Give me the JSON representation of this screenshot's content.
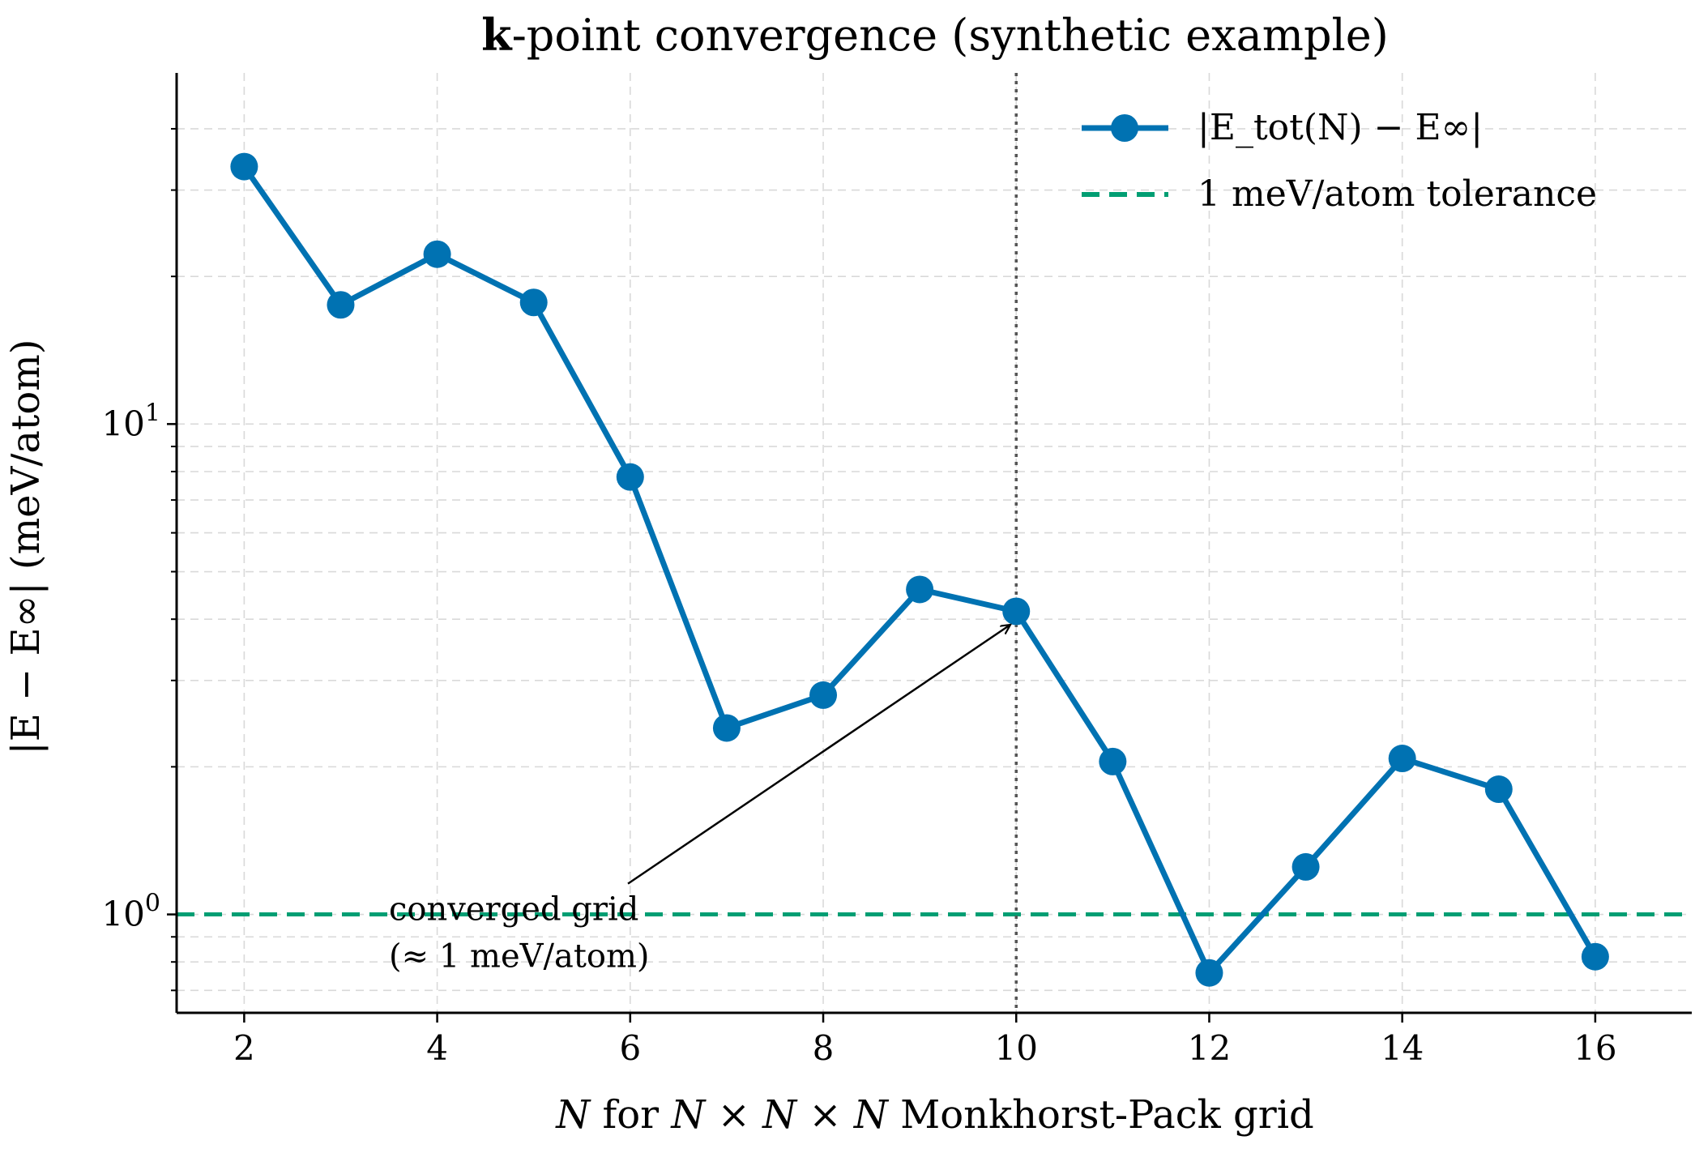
{
  "chart_data": {
    "type": "line",
    "title_prefix": "k",
    "title_rest": "-point convergence (synthetic example)",
    "xlabel": {
      "var": "N",
      "mid": " for ",
      "expr": "N × N × N",
      "suffix": " Monkhorst-Pack grid"
    },
    "ylabel": "|E − E∞| (meV/atom)",
    "yscale": "log",
    "xlim": [
      1.3,
      17.0
    ],
    "ylim": [
      0.63,
      52.0
    ],
    "x_ticks": [
      2,
      4,
      6,
      8,
      10,
      12,
      14,
      16
    ],
    "x_tick_labels": [
      "2",
      "4",
      "6",
      "8",
      "10",
      "12",
      "14",
      "16"
    ],
    "y_major_ticks": [
      {
        "value": 1,
        "base": "10",
        "exp": "0"
      },
      {
        "value": 10,
        "base": "10",
        "exp": "1"
      }
    ],
    "y_minor_ticks": [
      0.7,
      0.8,
      0.9,
      2,
      3,
      4,
      5,
      6,
      7,
      8,
      9,
      20,
      30,
      40
    ],
    "grid": true,
    "legend_position": "top-right",
    "series": [
      {
        "name": "|E_tot(N) − E∞|",
        "color": "#0072b2",
        "marker": "circle",
        "x": [
          2,
          3,
          4,
          5,
          6,
          7,
          8,
          9,
          10,
          11,
          12,
          13,
          14,
          15,
          16
        ],
        "y": [
          33.5,
          17.5,
          22.2,
          17.7,
          7.8,
          2.4,
          2.8,
          4.6,
          4.15,
          2.05,
          0.76,
          1.25,
          2.08,
          1.8,
          0.82
        ]
      }
    ],
    "reference_lines": [
      {
        "kind": "horizontal",
        "y": 1.0,
        "name": "1 meV/atom tolerance",
        "color": "#009e73",
        "style": "dashed"
      },
      {
        "kind": "vertical",
        "x": 10,
        "color": "#555555",
        "style": "dotted"
      }
    ],
    "annotation": {
      "lines": [
        "converged grid",
        "(≈ 1 meV/atom)"
      ],
      "text_x": 3.5,
      "text_y": 1.2,
      "arrow_to_x": 10,
      "arrow_to_y": 4.15
    }
  }
}
